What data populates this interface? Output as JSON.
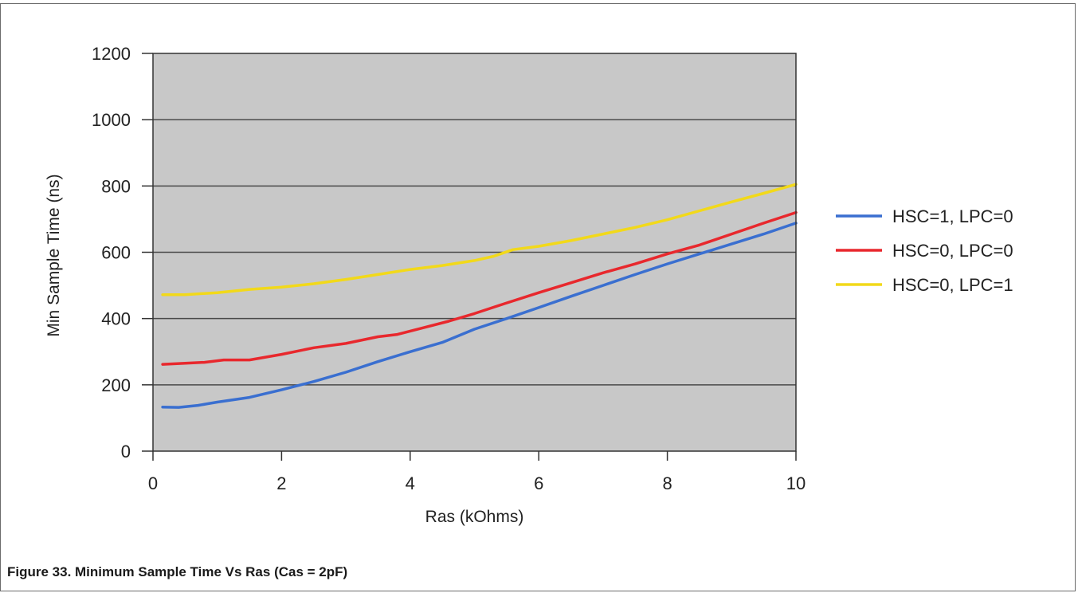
{
  "caption": "Figure 33.  Minimum Sample Time Vs Ras (Cas = 2pF)",
  "chart_data": {
    "type": "line",
    "title": "",
    "xlabel": "Ras (kOhms)",
    "ylabel": "Min Sample Time (ns)",
    "xlim": [
      0,
      10
    ],
    "ylim": [
      0,
      1200
    ],
    "xticks": [
      0,
      2,
      4,
      6,
      8,
      10
    ],
    "yticks": [
      0,
      200,
      400,
      600,
      800,
      1000,
      1200
    ],
    "grid": "horizontal",
    "legend_position": "right",
    "plot_background": "#c8c8c8",
    "series": [
      {
        "name": "HSC=1, LPC=0",
        "color": "#3a6fd0",
        "points": [
          [
            0.15,
            133
          ],
          [
            0.4,
            132
          ],
          [
            0.7,
            138
          ],
          [
            1,
            148
          ],
          [
            1.5,
            162
          ],
          [
            2,
            185
          ],
          [
            2.5,
            210
          ],
          [
            3,
            238
          ],
          [
            3.5,
            270
          ],
          [
            4,
            300
          ],
          [
            4.5,
            328
          ],
          [
            5,
            368
          ],
          [
            5.5,
            400
          ],
          [
            6,
            433
          ],
          [
            6.5,
            467
          ],
          [
            7,
            500
          ],
          [
            7.5,
            533
          ],
          [
            8,
            565
          ],
          [
            8.5,
            595
          ],
          [
            9,
            625
          ],
          [
            9.5,
            655
          ],
          [
            10,
            688
          ]
        ]
      },
      {
        "name": "HSC=0, LPC=0",
        "color": "#e8282d",
        "points": [
          [
            0.15,
            262
          ],
          [
            0.5,
            265
          ],
          [
            0.8,
            268
          ],
          [
            1.1,
            275
          ],
          [
            1.5,
            275
          ],
          [
            2,
            292
          ],
          [
            2.5,
            312
          ],
          [
            3,
            325
          ],
          [
            3.5,
            345
          ],
          [
            3.8,
            352
          ],
          [
            4.2,
            372
          ],
          [
            4.6,
            392
          ],
          [
            5,
            415
          ],
          [
            5.5,
            447
          ],
          [
            6,
            478
          ],
          [
            6.5,
            508
          ],
          [
            7,
            538
          ],
          [
            7.5,
            565
          ],
          [
            8,
            595
          ],
          [
            8.5,
            622
          ],
          [
            9,
            655
          ],
          [
            9.5,
            688
          ],
          [
            10,
            720
          ]
        ]
      },
      {
        "name": "HSC=0, LPC=1",
        "color": "#f2d91a",
        "points": [
          [
            0.15,
            472
          ],
          [
            0.5,
            472
          ],
          [
            1,
            478
          ],
          [
            1.5,
            488
          ],
          [
            2,
            495
          ],
          [
            2.5,
            505
          ],
          [
            3,
            518
          ],
          [
            3.5,
            533
          ],
          [
            4,
            548
          ],
          [
            4.5,
            560
          ],
          [
            5,
            575
          ],
          [
            5.3,
            588
          ],
          [
            5.6,
            608
          ],
          [
            6,
            618
          ],
          [
            6.5,
            635
          ],
          [
            7,
            655
          ],
          [
            7.5,
            675
          ],
          [
            8,
            698
          ],
          [
            8.5,
            725
          ],
          [
            9,
            752
          ],
          [
            9.5,
            778
          ],
          [
            10,
            805
          ]
        ]
      }
    ]
  }
}
